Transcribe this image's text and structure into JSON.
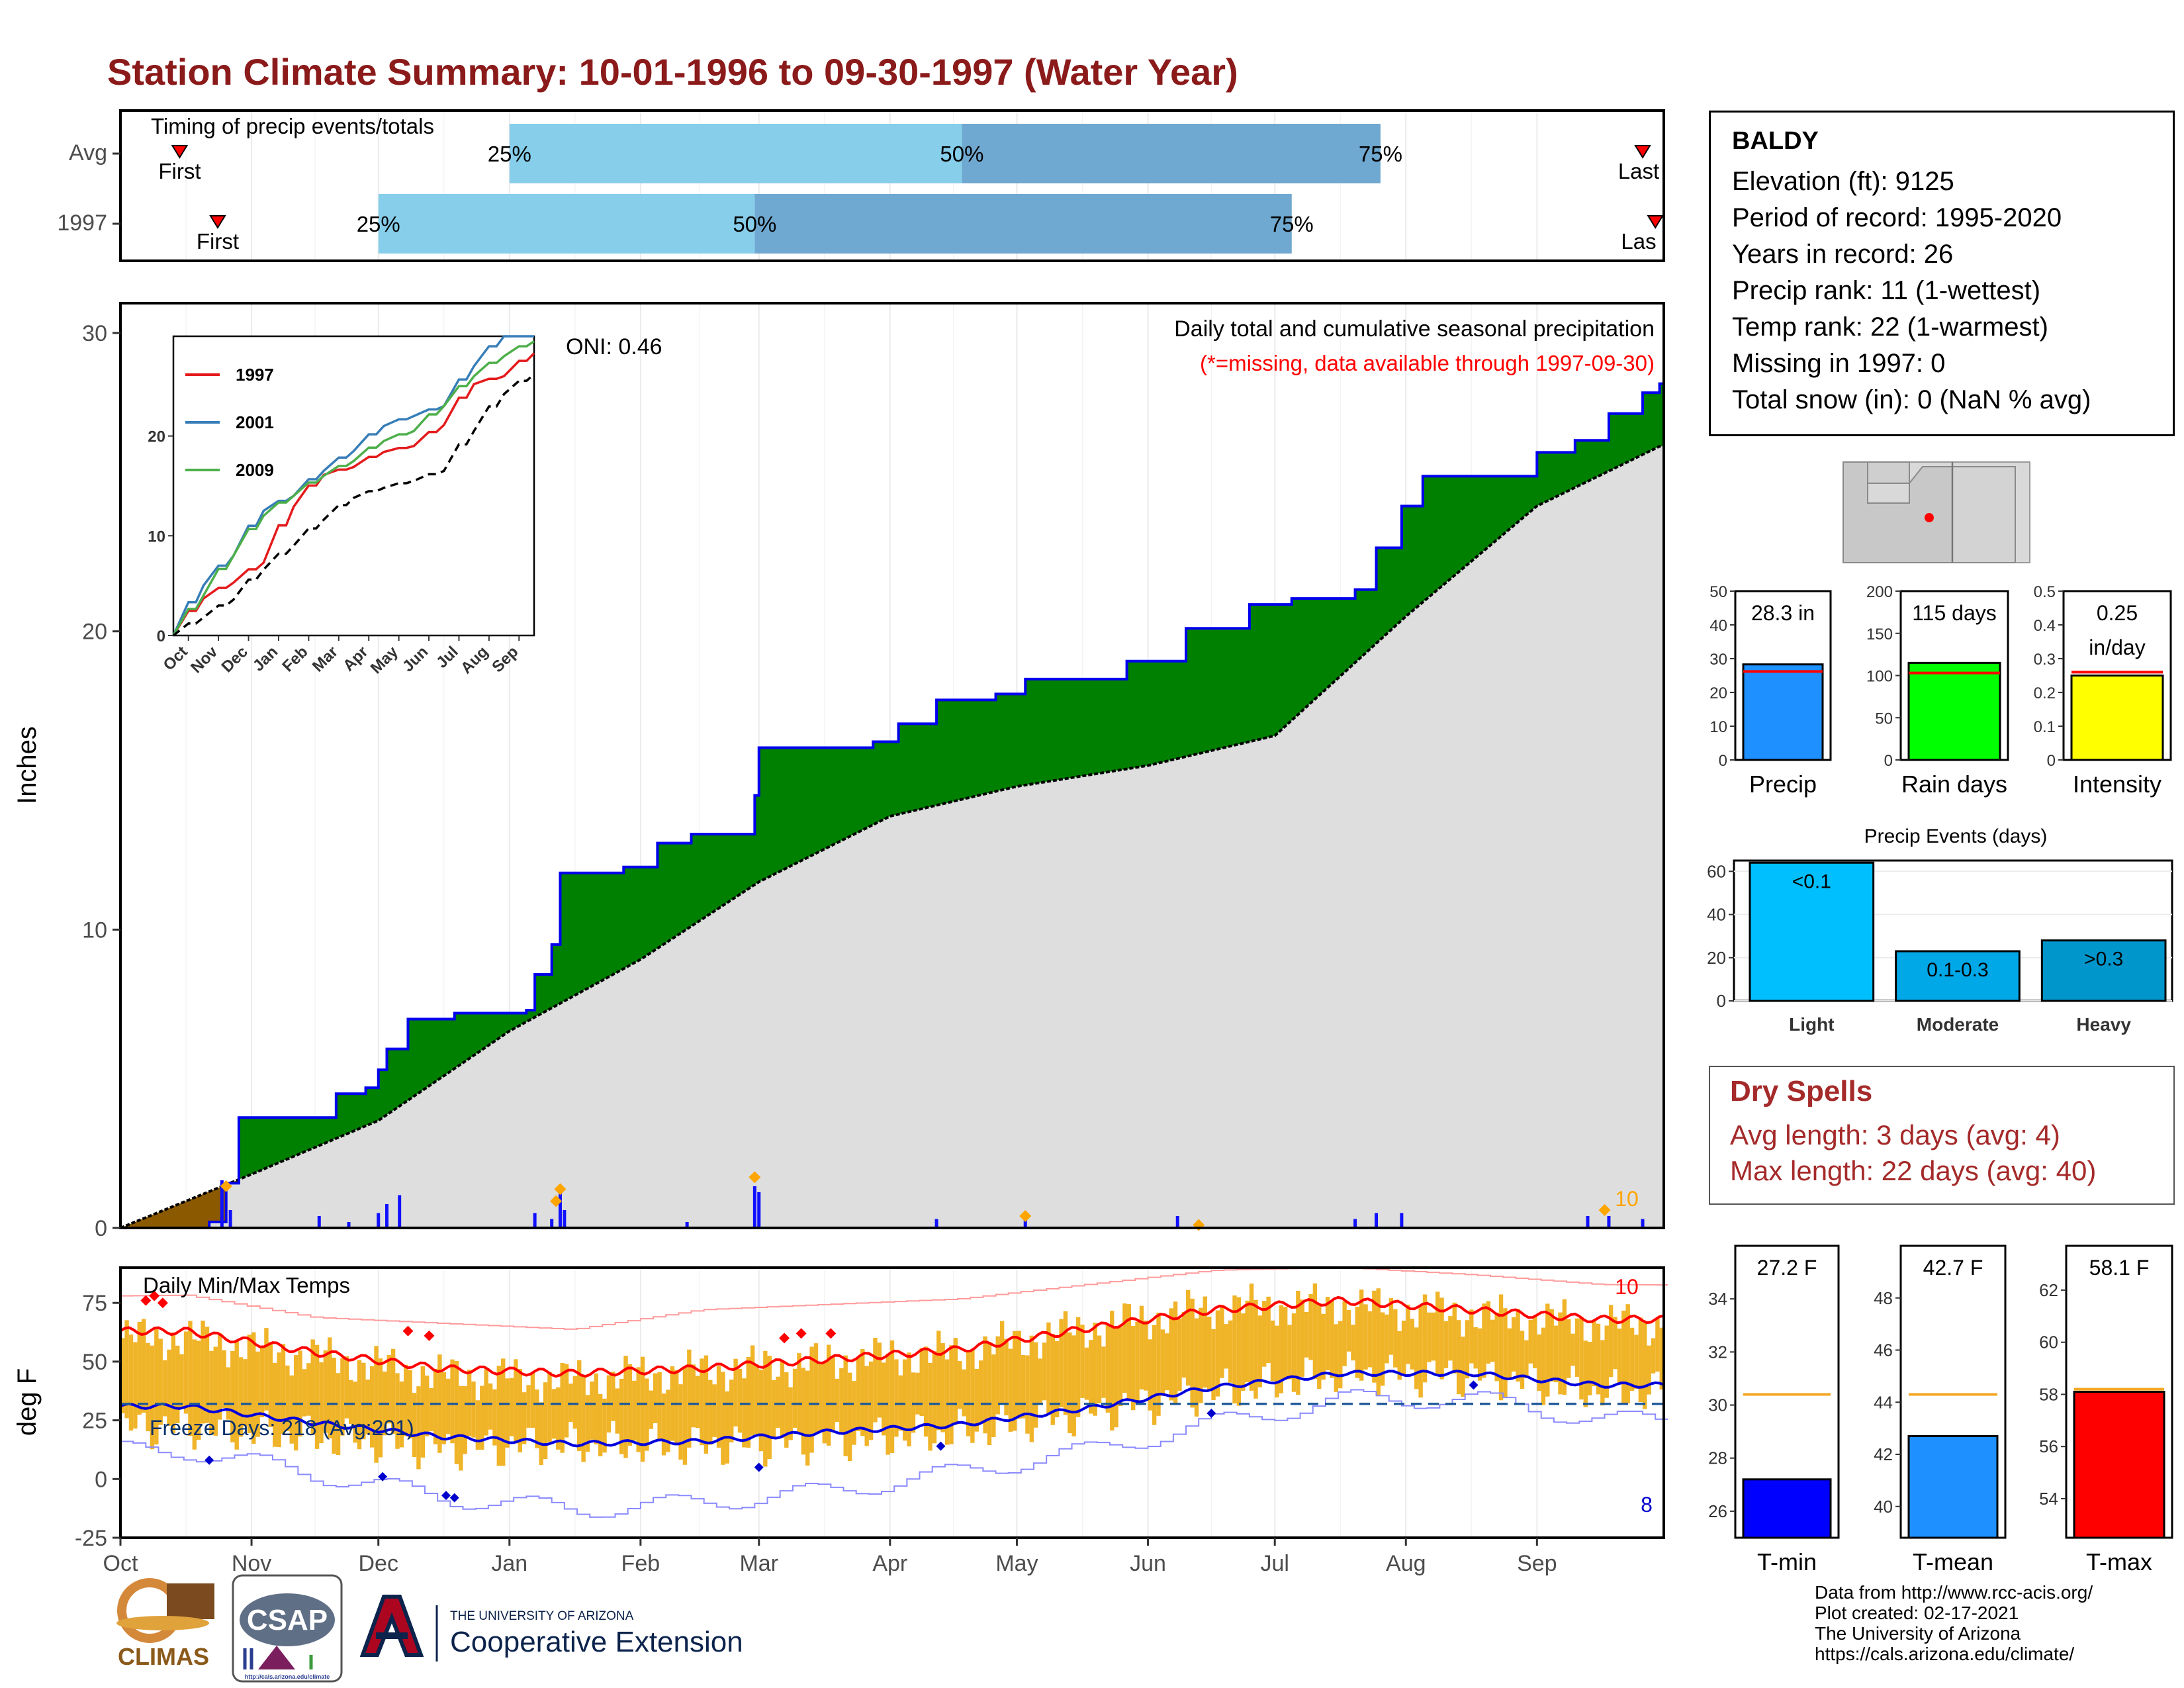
{
  "title": "Station Climate Summary: 10-01-1996 to 09-30-1997 (Water Year)",
  "timing": {
    "title": "Timing of precip events/totals",
    "rows": [
      {
        "label": "Avg",
        "first_label": "First",
        "last_label": "Last",
        "q25_label": "25%",
        "q50_label": "50%",
        "q75_label": "75%"
      },
      {
        "label": "1997",
        "first_label": "First",
        "last_label": "Las",
        "q25_label": "25%",
        "q50_label": "50%",
        "q75_label": "75%"
      }
    ]
  },
  "precip_panel": {
    "ylabel": "Inches",
    "caption": "Daily total and cumulative seasonal precipitation",
    "missing_note": "(*=missing, data available through 1997-09-30)",
    "oni": "ONI: 0.46",
    "corner_count": "10",
    "colors": {
      "surplus": "#008000",
      "deficit": "#8b5a00",
      "normal": "#dedede",
      "bars": "#1010ff",
      "extreme": "#ffa500"
    }
  },
  "inset": {
    "legend": [
      "1997",
      "2001",
      "2009"
    ],
    "legend_colors": [
      "#e41a1c",
      "#377eb8",
      "#4daf4a"
    ],
    "yticks": [
      "0",
      "10",
      "20"
    ],
    "xticks": [
      "Oct",
      "Nov",
      "Dec",
      "Jan",
      "Feb",
      "Mar",
      "Apr",
      "May",
      "Jun",
      "Jul",
      "Aug",
      "Sep"
    ]
  },
  "temp_panel": {
    "ylabel": "deg F",
    "title": "Daily Min/Max Temps",
    "freeze_label": "Freeze Days: 218 (Avg:201)",
    "hot_count": "10",
    "cold_count": "8",
    "yticks": [
      "75",
      "50",
      "25",
      "0",
      "-25"
    ]
  },
  "month_labels": [
    "Oct",
    "Nov",
    "Dec",
    "Jan",
    "Feb",
    "Mar",
    "Apr",
    "May",
    "Jun",
    "Jul",
    "Aug",
    "Sep"
  ],
  "station": {
    "name": "BALDY",
    "lines": [
      "Elevation (ft): 9125",
      "Period of record: 1995-2020",
      "Years in record: 26",
      "Precip rank: 11 (1-wettest)",
      "Temp rank: 22 (1-warmest)",
      "Missing in 1997: 0",
      "Total snow (in): 0 (NaN % avg)"
    ]
  },
  "dry_spells": {
    "title": "Dry Spells",
    "avg_line": "Avg length: 3 days (avg: 4)",
    "max_line": "Max length: 22 days (avg: 40)"
  },
  "credits": [
    "Data from http://www.rcc-acis.org/",
    "Plot created: 02-17-2021",
    "The University of Arizona",
    "https://cals.arizona.edu/climate/"
  ],
  "logos": {
    "climas": "CLIMAS",
    "csap": "CSAP",
    "csap_url": "http://cals.arizona.edu/climate",
    "ua_small": "THE UNIVERSITY OF ARIZONA",
    "ua_big": "Cooperative Extension"
  },
  "chart_data": [
    {
      "type": "bar",
      "name": "timing",
      "rows": [
        {
          "label": "Avg",
          "first": "1996-10-15",
          "q25": "1997-01-01",
          "q50": "1997-04-18",
          "q75": "1997-07-26",
          "last": "1997-09-26"
        },
        {
          "label": "1997",
          "first": "1996-10-24",
          "q25": "1996-12-01",
          "q50": "1997-02-28",
          "q75": "1997-07-05",
          "last": "1997-09-29"
        }
      ]
    },
    {
      "type": "area",
      "name": "cumulative_precip",
      "xlabel": "",
      "ylabel": "Inches",
      "ylim": [
        0,
        31
      ],
      "yticks": [
        0,
        10,
        20,
        30
      ],
      "series": [
        {
          "name": "1997",
          "points": [
            [
              "1996-10-01",
              0.0
            ],
            [
              "1996-10-22",
              0.2
            ],
            [
              "1996-10-26",
              1.5
            ],
            [
              "1996-10-29",
              3.7
            ],
            [
              "1996-11-17",
              3.7
            ],
            [
              "1996-11-21",
              4.5
            ],
            [
              "1996-11-28",
              4.7
            ],
            [
              "1996-12-01",
              5.3
            ],
            [
              "1996-12-03",
              6.0
            ],
            [
              "1996-12-08",
              7.0
            ],
            [
              "1996-12-19",
              7.2
            ],
            [
              "1997-01-05",
              7.3
            ],
            [
              "1997-01-07",
              8.5
            ],
            [
              "1997-01-11",
              9.5
            ],
            [
              "1997-01-13",
              11.9
            ],
            [
              "1997-01-28",
              12.1
            ],
            [
              "1997-02-05",
              12.9
            ],
            [
              "1997-02-13",
              13.2
            ],
            [
              "1997-02-28",
              14.5
            ],
            [
              "1997-03-01",
              16.1
            ],
            [
              "1997-03-28",
              16.3
            ],
            [
              "1997-04-03",
              16.9
            ],
            [
              "1997-04-12",
              17.7
            ],
            [
              "1997-04-26",
              17.9
            ],
            [
              "1997-05-03",
              18.4
            ],
            [
              "1997-05-25",
              18.4
            ],
            [
              "1997-05-27",
              19.0
            ],
            [
              "1997-06-08",
              19.0
            ],
            [
              "1997-06-10",
              20.1
            ],
            [
              "1997-06-25",
              20.9
            ],
            [
              "1997-07-05",
              21.1
            ],
            [
              "1997-07-20",
              21.4
            ],
            [
              "1997-07-25",
              22.8
            ],
            [
              "1997-07-31",
              24.2
            ],
            [
              "1997-08-05",
              25.2
            ],
            [
              "1997-08-23",
              25.2
            ],
            [
              "1997-09-01",
              26.0
            ],
            [
              "1997-09-10",
              26.4
            ],
            [
              "1997-09-18",
              27.3
            ],
            [
              "1997-09-26",
              28.0
            ],
            [
              "1997-09-30",
              28.3
            ]
          ]
        },
        {
          "name": "Average",
          "points": [
            [
              "1996-10-01",
              0.0
            ],
            [
              "1996-11-01",
              1.8
            ],
            [
              "1996-12-01",
              3.6
            ],
            [
              "1997-01-01",
              6.6
            ],
            [
              "1997-02-01",
              9.0
            ],
            [
              "1997-03-01",
              11.6
            ],
            [
              "1997-04-01",
              13.8
            ],
            [
              "1997-05-01",
              14.8
            ],
            [
              "1997-06-01",
              15.5
            ],
            [
              "1997-07-01",
              16.5
            ],
            [
              "1997-08-01",
              20.5
            ],
            [
              "1997-09-01",
              24.2
            ],
            [
              "1997-09-30",
              26.2
            ]
          ]
        }
      ],
      "daily_bars": [
        [
          "1996-10-25",
          1.6
        ],
        [
          "1996-10-27",
          0.6
        ],
        [
          "1996-11-17",
          0.4
        ],
        [
          "1996-11-24",
          0.2
        ],
        [
          "1996-12-01",
          0.5
        ],
        [
          "1996-12-03",
          0.8
        ],
        [
          "1996-12-06",
          1.1
        ],
        [
          "1997-01-07",
          0.5
        ],
        [
          "1997-01-11",
          0.3
        ],
        [
          "1997-01-13",
          1.2
        ],
        [
          "1997-01-14",
          0.6
        ],
        [
          "1997-02-12",
          0.2
        ],
        [
          "1997-02-28",
          1.4
        ],
        [
          "1997-03-01",
          1.2
        ],
        [
          "1997-04-12",
          0.3
        ],
        [
          "1997-05-03",
          0.3
        ],
        [
          "1997-06-08",
          0.4
        ],
        [
          "1997-07-20",
          0.3
        ],
        [
          "1997-07-25",
          0.5
        ],
        [
          "1997-07-31",
          0.5
        ],
        [
          "1997-09-13",
          0.4
        ],
        [
          "1997-09-18",
          0.4
        ],
        [
          "1997-09-26",
          0.3
        ]
      ],
      "extreme_markers": [
        [
          "1996-10-26",
          1.4
        ],
        [
          "1997-01-12",
          0.9
        ],
        [
          "1997-01-13",
          1.3
        ],
        [
          "1997-02-28",
          1.7
        ],
        [
          "1997-05-03",
          0.4
        ],
        [
          "1997-06-13",
          0.1
        ],
        [
          "1997-09-17",
          0.6
        ]
      ]
    },
    {
      "type": "line",
      "name": "inset_cumulative",
      "ylim": [
        0,
        30
      ],
      "series": [
        {
          "name": "1997",
          "color": "#e41a1c",
          "values": [
            0,
            3.7,
            5.3,
            7.3,
            12.9,
            16.1,
            16.9,
            18.4,
            19.0,
            21.1,
            25.2,
            26.0,
            28.3
          ]
        },
        {
          "name": "2001",
          "color": "#377eb8",
          "values": [
            0,
            5.0,
            8.0,
            12.5,
            14.0,
            16.5,
            18.5,
            21.0,
            22.0,
            23.0,
            27.0,
            30.0,
            30.0
          ]
        },
        {
          "name": "2009",
          "color": "#4daf4a",
          "values": [
            0,
            4.0,
            8.0,
            12.0,
            14.0,
            16.0,
            17.5,
            19.5,
            20.5,
            23.0,
            26.0,
            28.0,
            29.5
          ]
        },
        {
          "name": "Average",
          "color": "#000000",
          "values": [
            0,
            1.8,
            3.6,
            6.6,
            9.0,
            11.6,
            13.8,
            14.8,
            15.5,
            16.5,
            20.5,
            24.2,
            26.2
          ]
        }
      ]
    },
    {
      "type": "line",
      "name": "daily_temps",
      "ylabel": "deg F",
      "ylim": [
        -25,
        90
      ],
      "yticks": [
        -25,
        0,
        25,
        50,
        75
      ],
      "freeze_threshold": 32,
      "monthly": [
        {
          "month": "Oct",
          "avg_max": 63,
          "avg_min": 31,
          "obs_max": 60,
          "obs_min": 22,
          "rec_max": 78,
          "rec_min": 12
        },
        {
          "month": "Nov",
          "avg_max": 54,
          "avg_min": 24,
          "obs_max": 52,
          "obs_min": 18,
          "rec_max": 68,
          "rec_min": 2
        },
        {
          "month": "Dec",
          "avg_max": 47,
          "avg_min": 18,
          "obs_max": 44,
          "obs_min": 13,
          "rec_max": 65,
          "rec_min": -8
        },
        {
          "month": "Jan",
          "avg_max": 45,
          "avg_min": 15,
          "obs_max": 42,
          "obs_min": 15,
          "rec_max": 62,
          "rec_min": -13
        },
        {
          "month": "Feb",
          "avg_max": 47,
          "avg_min": 16,
          "obs_max": 46,
          "obs_min": 14,
          "rec_max": 70,
          "rec_min": -10
        },
        {
          "month": "Mar",
          "avg_max": 51,
          "avg_min": 20,
          "obs_max": 50,
          "obs_min": 16,
          "rec_max": 72,
          "rec_min": -5
        },
        {
          "month": "Apr",
          "avg_max": 55,
          "avg_min": 23,
          "obs_max": 54,
          "obs_min": 20,
          "rec_max": 74,
          "rec_min": 3
        },
        {
          "month": "May",
          "avg_max": 64,
          "avg_min": 30,
          "obs_max": 64,
          "obs_min": 28,
          "rec_max": 80,
          "rec_min": 12
        },
        {
          "month": "Jun",
          "avg_max": 72,
          "avg_min": 39,
          "obs_max": 73,
          "obs_min": 37,
          "rec_max": 86,
          "rec_min": 24
        },
        {
          "month": "Jul",
          "avg_max": 76,
          "avg_min": 45,
          "obs_max": 74,
          "obs_min": 45,
          "rec_max": 87,
          "rec_min": 34
        },
        {
          "month": "Aug",
          "avg_max": 72,
          "avg_min": 45,
          "obs_max": 70,
          "obs_min": 44,
          "rec_max": 84,
          "rec_min": 34
        },
        {
          "month": "Sep",
          "avg_max": 68,
          "avg_min": 40,
          "obs_max": 66,
          "obs_min": 37,
          "rec_max": 80,
          "rec_min": 25
        }
      ],
      "record_highs": [
        [
          "1996-10-07",
          76
        ],
        [
          "1996-10-09",
          78
        ],
        [
          "1996-10-11",
          75
        ],
        [
          "1996-12-08",
          63
        ],
        [
          "1996-12-13",
          61
        ],
        [
          "1997-03-07",
          60
        ],
        [
          "1997-03-11",
          62
        ],
        [
          "1997-03-18",
          62
        ]
      ],
      "record_lows": [
        [
          "1996-10-22",
          8
        ],
        [
          "1996-12-02",
          1
        ],
        [
          "1996-12-17",
          -7
        ],
        [
          "1996-12-19",
          -8
        ],
        [
          "1997-03-01",
          5
        ],
        [
          "1997-04-13",
          14
        ],
        [
          "1997-06-16",
          28
        ],
        [
          "1997-08-17",
          40
        ]
      ]
    },
    {
      "type": "bar",
      "name": "season_totals",
      "panels": [
        {
          "category": "Precip",
          "label": "28.3 in",
          "value": 28.3,
          "avg": 26.2,
          "ylim": [
            0,
            50
          ],
          "yticks": [
            0,
            10,
            20,
            30,
            40,
            50
          ],
          "color": "#1e90ff"
        },
        {
          "category": "Rain days",
          "label": "115 days",
          "value": 115,
          "avg": 103,
          "ylim": [
            0,
            200
          ],
          "yticks": [
            0,
            50,
            100,
            150,
            200
          ],
          "color": "#00ff00"
        },
        {
          "category": "Intensity",
          "label": "0.25\nin/day",
          "value": 0.25,
          "avg": 0.26,
          "ylim": [
            0,
            0.5
          ],
          "yticks": [
            0.0,
            0.1,
            0.2,
            0.3,
            0.4,
            0.5
          ],
          "color": "#ffff00"
        }
      ]
    },
    {
      "type": "bar",
      "name": "precip_events",
      "title": "Precip Events (days)",
      "categories": [
        "Light",
        "Moderate",
        "Heavy"
      ],
      "labels": [
        "<0.1",
        "0.1-0.3",
        ">0.3"
      ],
      "values": [
        64,
        23,
        28
      ],
      "ylim": [
        0,
        65
      ],
      "yticks": [
        0,
        20,
        40,
        60
      ],
      "colors": [
        "#00bfff",
        "#00a8e8",
        "#0096cc"
      ]
    },
    {
      "type": "bar",
      "name": "temperature_summary",
      "panels": [
        {
          "category": "T-min",
          "label": "27.2 F",
          "value": 27.2,
          "avg": 30.4,
          "ylim": [
            25,
            36
          ],
          "yticks": [
            26,
            28,
            30,
            32,
            34
          ],
          "color": "#0000ff"
        },
        {
          "category": "T-mean",
          "label": "42.7 F",
          "value": 42.7,
          "avg": 44.3,
          "ylim": [
            38.8,
            50
          ],
          "yticks": [
            40,
            42,
            44,
            46,
            48
          ],
          "color": "#1e90ff"
        },
        {
          "category": "T-max",
          "label": "58.1 F",
          "value": 58.1,
          "avg": 58.2,
          "ylim": [
            52.5,
            63.7
          ],
          "yticks": [
            54,
            56,
            58,
            60,
            62
          ],
          "color": "#ff0000"
        }
      ]
    }
  ]
}
